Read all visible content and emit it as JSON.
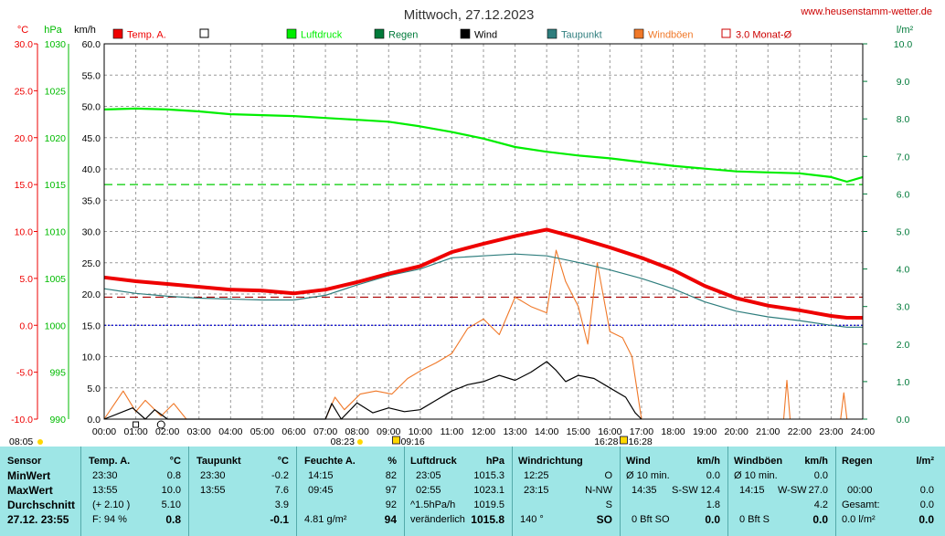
{
  "chart_data": {
    "type": "line",
    "title": "Mittwoch, 27.12.2023",
    "source": "www.heusenstamm-wetter.de",
    "axis_units": {
      "temp": "°C",
      "pressure": "hPa",
      "wind": "km/h",
      "rain": "l/m²"
    },
    "axes": {
      "temp": {
        "ticks": [
          "30.0",
          "25.0",
          "20.0",
          "15.0",
          "10.0",
          "5.0",
          "0.0",
          "-5.0",
          "-10.0"
        ],
        "range": [
          -10,
          30
        ]
      },
      "pressure": {
        "ticks": [
          "1030",
          "1025",
          "1020",
          "1015",
          "1010",
          "1005",
          "1000",
          "995",
          "990"
        ],
        "range": [
          990,
          1030
        ]
      },
      "wind": {
        "ticks": [
          "60.0",
          "55.0",
          "50.0",
          "45.0",
          "40.0",
          "35.0",
          "30.0",
          "25.0",
          "20.0",
          "15.0",
          "10.0",
          "5.0",
          "0.0"
        ],
        "range": [
          0,
          60
        ]
      },
      "rain": {
        "ticks": [
          "10.0",
          "9.0",
          "8.0",
          "7.0",
          "6.0",
          "5.0",
          "4.0",
          "3.0",
          "2.0",
          "1.0",
          "0.0"
        ],
        "range": [
          0,
          10
        ]
      }
    },
    "x_ticks": [
      "00:00",
      "01:00",
      "02:00",
      "03:00",
      "04:00",
      "05:00",
      "06:00",
      "07:00",
      "08:00",
      "09:00",
      "10:00",
      "11:00",
      "12:00",
      "13:00",
      "14:00",
      "15:00",
      "16:00",
      "17:00",
      "18:00",
      "19:00",
      "20:00",
      "21:00",
      "22:00",
      "23:00",
      "24:00"
    ],
    "legend": [
      {
        "name": "Temp. A.",
        "color": "#ee0000",
        "style": "filled"
      },
      {
        "name": "",
        "color": "#ffffff",
        "style": "empty"
      },
      {
        "name": "Luftdruck",
        "color": "#00ee00",
        "style": "filled"
      },
      {
        "name": "Regen",
        "color": "#007a3a",
        "style": "filled"
      },
      {
        "name": "Wind",
        "color": "#000000",
        "style": "filled"
      },
      {
        "name": "Taupunkt",
        "color": "#2e7d7d",
        "style": "filled"
      },
      {
        "name": "Windböen",
        "color": "#f07828",
        "style": "filled"
      },
      {
        "name": "3.0 Monat-Ø",
        "color": "#cc0000",
        "style": "empty"
      }
    ],
    "sun_markers": [
      {
        "time": "08:05",
        "label": "08:05"
      },
      {
        "time": "08:23",
        "label": "08:23"
      },
      {
        "time": "09:16",
        "label": "09:16"
      },
      {
        "time": "16:28",
        "label": "16:28"
      },
      {
        "time": "16:28",
        "label": "16:28"
      }
    ],
    "reference_lines": {
      "pressure_ref": 1015,
      "temp_monthly_avg": 3.0,
      "temp_zero": 0
    },
    "series": [
      {
        "name": "Temp. A.",
        "axis": "temp",
        "color": "#ee0000",
        "x": [
          0,
          1,
          2,
          3,
          4,
          5,
          6,
          7,
          8,
          9,
          10,
          11,
          12,
          13,
          14,
          15,
          16,
          17,
          18,
          19,
          20,
          21,
          22,
          23,
          23.5,
          24
        ],
        "y": [
          5.1,
          4.7,
          4.4,
          4.1,
          3.8,
          3.7,
          3.4,
          3.8,
          4.6,
          5.5,
          6.3,
          7.8,
          8.7,
          9.5,
          10.2,
          9.3,
          8.3,
          7.2,
          5.9,
          4.2,
          2.9,
          2.1,
          1.6,
          1.0,
          0.8,
          0.8
        ]
      },
      {
        "name": "Taupunkt",
        "axis": "temp",
        "color": "#2e7d7d",
        "x": [
          0,
          1,
          2,
          3,
          4,
          5,
          6,
          7,
          8,
          9,
          10,
          11,
          12,
          13,
          14,
          15,
          16,
          17,
          18,
          19,
          20,
          21,
          22,
          23,
          23.5,
          24
        ],
        "y": [
          3.9,
          3.4,
          3.1,
          2.9,
          2.8,
          2.7,
          2.7,
          3.2,
          4.3,
          5.3,
          6.0,
          7.2,
          7.4,
          7.6,
          7.4,
          6.7,
          5.9,
          5.0,
          3.9,
          2.5,
          1.5,
          0.9,
          0.5,
          0.0,
          -0.2,
          -0.2
        ]
      },
      {
        "name": "Luftdruck",
        "axis": "pressure",
        "color": "#00ee00",
        "x": [
          0,
          1,
          2,
          3,
          4,
          5,
          6,
          7,
          8,
          9,
          10,
          11,
          12,
          13,
          14,
          15,
          16,
          17,
          18,
          19,
          20,
          21,
          22,
          23,
          23.5,
          24
        ],
        "y": [
          1023.0,
          1023.1,
          1023.0,
          1022.8,
          1022.5,
          1022.4,
          1022.3,
          1022.1,
          1021.9,
          1021.7,
          1021.2,
          1020.6,
          1019.9,
          1019.0,
          1018.5,
          1018.1,
          1017.8,
          1017.4,
          1017.0,
          1016.7,
          1016.4,
          1016.3,
          1016.2,
          1015.8,
          1015.3,
          1015.8
        ]
      },
      {
        "name": "Wind",
        "axis": "wind",
        "color": "#000000",
        "x": [
          0,
          0.9,
          1.3,
          1.6,
          2,
          2.5,
          7,
          7.2,
          7.5,
          8,
          8.5,
          9,
          9.5,
          10,
          10.5,
          11,
          11.5,
          12,
          12.5,
          13,
          13.5,
          14,
          14.3,
          14.6,
          15,
          15.5,
          16,
          16.5,
          16.8,
          17
        ],
        "y": [
          0,
          1.8,
          0,
          1.5,
          0,
          0,
          0,
          2.5,
          0,
          2.6,
          1,
          1.8,
          1.2,
          1.5,
          3.0,
          4.5,
          5.5,
          6.0,
          7.0,
          6.2,
          7.5,
          9.2,
          7.8,
          6.0,
          7.0,
          6.5,
          5.0,
          3.5,
          1.0,
          0
        ]
      },
      {
        "name": "Windböen",
        "axis": "wind",
        "color": "#f07828",
        "x": [
          0,
          0.6,
          1.0,
          1.3,
          1.8,
          2.2,
          2.6,
          7.0,
          7.3,
          7.6,
          8.1,
          8.6,
          9.1,
          9.6,
          10.1,
          10.5,
          11,
          11.5,
          12,
          12.5,
          13,
          13.5,
          14,
          14.3,
          14.6,
          15,
          15.3,
          15.6,
          16,
          16.4,
          16.7,
          17,
          21.5,
          21.6,
          21.7,
          23.3,
          23.4,
          23.5
        ],
        "y": [
          0,
          4.5,
          1.2,
          3.0,
          0.5,
          2.5,
          0,
          0,
          3.5,
          1.5,
          4.0,
          4.5,
          4.0,
          6.5,
          8.0,
          9.0,
          10.5,
          14.5,
          16.0,
          13.5,
          19.5,
          18.0,
          17.0,
          27.0,
          22.0,
          18.0,
          12.0,
          25.0,
          14.0,
          13.0,
          10.0,
          0,
          0,
          6.2,
          0,
          0,
          4.2,
          0
        ]
      }
    ]
  },
  "table": {
    "sensor": {
      "header": "Sensor",
      "r1": "MinWert",
      "r2": "MaxWert",
      "r3": "Durchschnitt",
      "r4": "27.12. 23:55"
    },
    "temp": {
      "header": "Temp. A.",
      "unit": "°C",
      "r1_time": "23:30",
      "r1_val": "0.8",
      "r2_time": "13:55",
      "r2_val": "10.0",
      "r3_time": "(+ 2.10 )",
      "r3_val": "5.10",
      "r4_time": "F: 94 %",
      "r4_val": "0.8"
    },
    "dew": {
      "header": "Taupunkt",
      "unit": "°C",
      "r1_time": "23:30",
      "r1_val": "-0.2",
      "r2_time": "13:55",
      "r2_val": "7.6",
      "r3_val": "3.9",
      "r4_val": "-0.1"
    },
    "hum": {
      "header": "Feuchte A.",
      "unit": "%",
      "r1_time": "14:15",
      "r1_val": "82",
      "r2_time": "09:45",
      "r2_val": "97",
      "r3_val": "92",
      "r4_time": "4.81 g/m²",
      "r4_val": "94"
    },
    "press": {
      "header": "Luftdruck",
      "unit": "hPa",
      "r1_time": "23:05",
      "r1_val": "1015.3",
      "r2_time": "02:55",
      "r2_val": "1023.1",
      "r3_time": "^1.5hPa/h",
      "r3_val": "1019.5",
      "r4_time": "veränderlich",
      "r4_val": "1015.8"
    },
    "winddir": {
      "header": "Windrichtung",
      "r1_time": "12:25",
      "r1_val": "O",
      "r2_time": "23:15",
      "r2_val": "N-NW",
      "r3_val": "S",
      "r4_time": "140 °",
      "r4_val": "SO"
    },
    "wind": {
      "header": "Wind",
      "unit": "km/h",
      "r1_time": "Ø 10 min.",
      "r1_val": "0.0",
      "r2_time": "14:35",
      "r2_dir": "S-SW",
      "r2_val": "12.4",
      "r3_val": "1.8",
      "r4_time": "0 Bft SO",
      "r4_val": "0.0"
    },
    "gust": {
      "header": "Windböen",
      "unit": "km/h",
      "r1_time": "Ø 10 min.",
      "r1_val": "0.0",
      "r2_time": "14:15",
      "r2_dir": "W-SW",
      "r2_val": "27.0",
      "r3_val": "4.2",
      "r4_time": "0 Bft S",
      "r4_val": "0.0"
    },
    "rain": {
      "header": "Regen",
      "unit": "l/m²",
      "r2_time": "00:00",
      "r2_val": "0.0",
      "r3_time": "Gesamt:",
      "r3_val": "0.0",
      "r4_time": "0.0 l/m²",
      "r4_val": "0.0"
    }
  }
}
